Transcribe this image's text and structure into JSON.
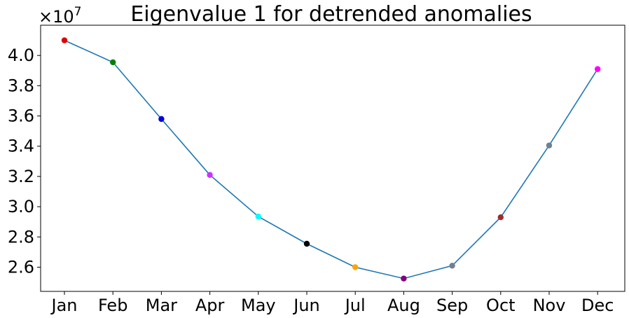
{
  "chart_data": {
    "type": "line",
    "title": "Eigenvalue 1 for detrended anomalies",
    "xlabel": "",
    "ylabel": "",
    "y_offset_label": "×10",
    "y_offset_exponent": "7",
    "categories": [
      "Jan",
      "Feb",
      "Mar",
      "Apr",
      "May",
      "Jun",
      "Jul",
      "Aug",
      "Sep",
      "Oct",
      "Nov",
      "Dec"
    ],
    "series": [
      {
        "values": [
          4.1,
          3.955,
          3.58,
          3.21,
          2.935,
          2.755,
          2.6,
          2.525,
          2.61,
          2.93,
          3.405,
          3.91
        ],
        "line_color": "#1f77b4",
        "marker_colors": [
          "#e00000",
          "#008000",
          "#0000e0",
          "#cc33ff",
          "#00ffff",
          "#000000",
          "#ffa500",
          "#800080",
          "#708090",
          "#a52a2a",
          "#708090",
          "#ff00ff"
        ]
      }
    ],
    "ylim": [
      2.44,
      4.2
    ],
    "yticks": [
      "2.6",
      "2.8",
      "3.0",
      "3.2",
      "3.4",
      "3.6",
      "3.8",
      "4.0"
    ],
    "grid": false,
    "legend": "none"
  }
}
